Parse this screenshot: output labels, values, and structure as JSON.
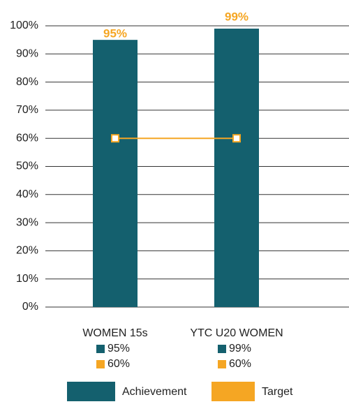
{
  "chart_data": {
    "type": "bar_line",
    "categories": [
      "WOMEN 15s",
      "YTC U20 WOMEN"
    ],
    "series": [
      {
        "name": "Achievement",
        "type": "bar",
        "color": "#14606e",
        "values": [
          95,
          99
        ],
        "value_labels": [
          "95%",
          "99%"
        ],
        "label_color": "#f5a623"
      },
      {
        "name": "Target",
        "type": "line",
        "color": "#f5a623",
        "values": [
          60,
          60
        ],
        "value_labels": [
          "60%",
          "60%"
        ]
      }
    ],
    "ylim": [
      0,
      100
    ],
    "yticks": [
      {
        "value": 0,
        "label": "0%"
      },
      {
        "value": 10,
        "label": "10%"
      },
      {
        "value": 20,
        "label": "20%"
      },
      {
        "value": 30,
        "label": "30%"
      },
      {
        "value": 40,
        "label": "40%"
      },
      {
        "value": 50,
        "label": "50%"
      },
      {
        "value": 60,
        "label": "60%"
      },
      {
        "value": 70,
        "label": "70%"
      },
      {
        "value": 80,
        "label": "80%"
      },
      {
        "value": 90,
        "label": "90%"
      },
      {
        "value": 100,
        "label": "100%"
      }
    ],
    "grid": true,
    "legend": "bottom"
  }
}
